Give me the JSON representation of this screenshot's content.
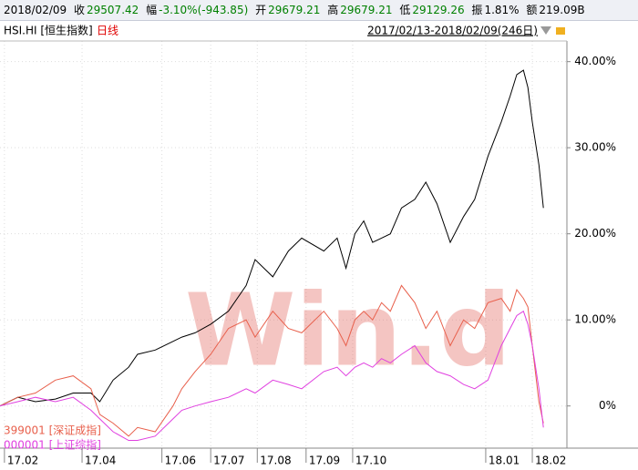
{
  "header": {
    "date": "2018/02/09",
    "items": [
      {
        "label": "收",
        "value": "29507.42"
      },
      {
        "label": "幅",
        "value": "-3.10%(-943.85)"
      },
      {
        "label": "开",
        "value": "29679.21"
      },
      {
        "label": "高",
        "value": "29679.21"
      },
      {
        "label": "低",
        "value": "29129.26"
      },
      {
        "label": "振",
        "value": "1.81%"
      },
      {
        "label": "额",
        "value": "219.09B"
      }
    ]
  },
  "chart_data": {
    "type": "line",
    "period": "日线",
    "range": "2017/02/13-2018/02/09(246日)",
    "watermark": "Win.d",
    "x": [
      0,
      8,
      16,
      25,
      33,
      41,
      45,
      51,
      58,
      62,
      70,
      78,
      82,
      88,
      95,
      103,
      111,
      115,
      123,
      130,
      136,
      146,
      152,
      156,
      160,
      164,
      168,
      172,
      176,
      181,
      187,
      192,
      197,
      203,
      209,
      214,
      220,
      226,
      230,
      233,
      236,
      238,
      240,
      243,
      245
    ],
    "series": [
      {
        "name": "HSI.HI [恒生指数]",
        "color": "#000000",
        "values": [
          0,
          1,
          0.5,
          0.8,
          1.5,
          1.5,
          0.5,
          3,
          4.5,
          6,
          6.5,
          7.5,
          8,
          8.5,
          9.5,
          11,
          14,
          17,
          15,
          18,
          19.5,
          18,
          19.5,
          16,
          20,
          21.5,
          19,
          19.5,
          20,
          23,
          24,
          26,
          23.5,
          19,
          22,
          24,
          29,
          33,
          36,
          38.5,
          39,
          37,
          33,
          28,
          23
        ]
      },
      {
        "name": "399001 [深证成指]",
        "color": "#e8604c",
        "values": [
          0,
          1,
          1.5,
          3,
          3.5,
          2,
          -1,
          -2,
          -3.5,
          -2.5,
          -3,
          0,
          2,
          4,
          6,
          9,
          10,
          8,
          11,
          9,
          8.5,
          11,
          9,
          7,
          10,
          11,
          10,
          12,
          11,
          14,
          12,
          9,
          11,
          7,
          10,
          9,
          12,
          12.5,
          11,
          13.5,
          12.5,
          11.5,
          7,
          0.5,
          -2
        ]
      },
      {
        "name": "000001 [上证综指]",
        "color": "#e040e0",
        "values": [
          0,
          0.5,
          1,
          0.5,
          1,
          -0.5,
          -1.5,
          -3,
          -4,
          -4,
          -3.5,
          -1.5,
          -0.5,
          0,
          0.5,
          1,
          2,
          1.5,
          3,
          2.5,
          2,
          4,
          4.5,
          3.5,
          4.5,
          5,
          4.5,
          5.5,
          5,
          6,
          7,
          5,
          4,
          3.5,
          2.5,
          2,
          3,
          7,
          9,
          10.5,
          11,
          9.5,
          7,
          2,
          -2.5
        ]
      }
    ],
    "xlim": [
      0,
      255.6
    ],
    "ylim": [
      -4.9,
      42.4
    ],
    "xticks": [
      {
        "value": 2,
        "label": "17.02"
      },
      {
        "value": 37,
        "label": "17.04"
      },
      {
        "value": 73,
        "label": "17.06"
      },
      {
        "value": 95,
        "label": "17.07"
      },
      {
        "value": 116,
        "label": "17.08"
      },
      {
        "value": 138,
        "label": "17.09"
      },
      {
        "value": 159,
        "label": "17.10"
      },
      {
        "value": 219,
        "label": "18.01"
      },
      {
        "value": 240,
        "label": "18.02"
      }
    ],
    "yticks": [
      {
        "value": 0,
        "label": "0%"
      },
      {
        "value": 10,
        "label": "10.00%"
      },
      {
        "value": 20,
        "label": "20.00%"
      },
      {
        "value": 30,
        "label": "30.00%"
      },
      {
        "value": 40,
        "label": "40.00%"
      }
    ],
    "grid": true
  }
}
